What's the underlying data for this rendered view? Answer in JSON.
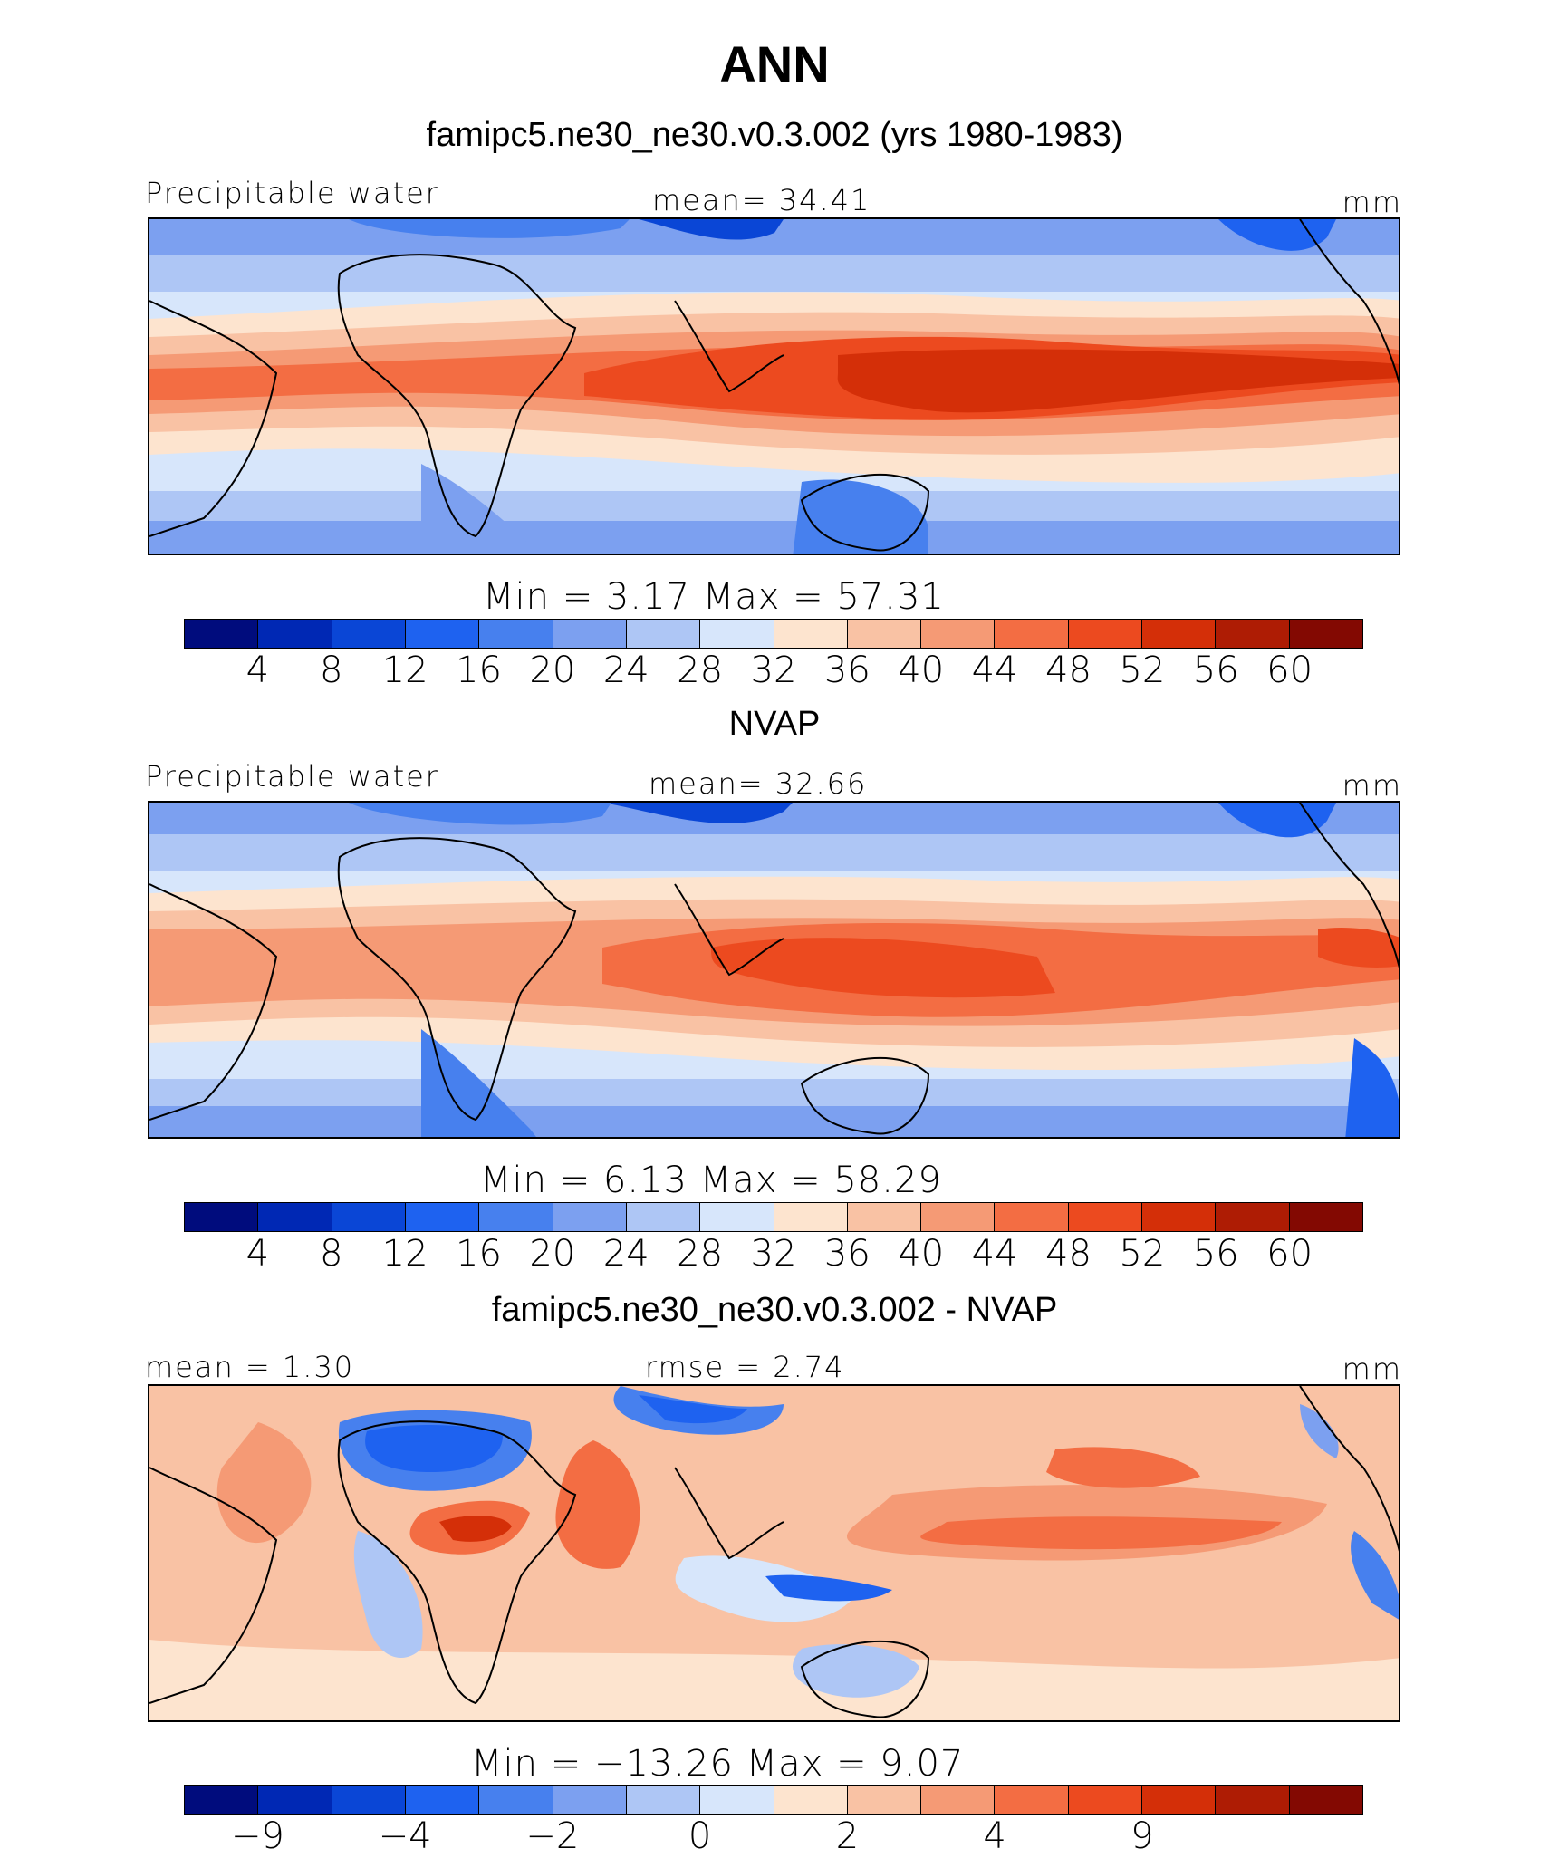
{
  "figure": {
    "title": "ANN",
    "colors": [
      "#000c7d",
      "#0028b4",
      "#0a46d6",
      "#1e62f0",
      "#4780ee",
      "#7ca0f0",
      "#aec6f5",
      "#d7e6fb",
      "#fde4cf",
      "#f9c2a4",
      "#f59a75",
      "#f36d43",
      "#ec4a1f",
      "#d42f08",
      "#ae1c04",
      "#830902"
    ]
  },
  "panels": [
    {
      "id": "model",
      "title": "famipc5.ne30_ne30.v0.3.002 (yrs 1980-1983)",
      "left_label": "Precipitable water",
      "center_label": "mean=   34.41",
      "right_label": "mm",
      "minmax": "Min  =     3.17  Max  =    57.31",
      "ticks": [
        "4",
        "8",
        "12",
        "16",
        "20",
        "24",
        "28",
        "32",
        "36",
        "40",
        "44",
        "48",
        "52",
        "56",
        "60"
      ]
    },
    {
      "id": "obs",
      "title": "NVAP",
      "left_label": "Precipitable water",
      "center_label": "mean=   32.66",
      "right_label": "mm",
      "minmax": "Min  =     6.13  Max  =    58.29",
      "ticks": [
        "4",
        "8",
        "12",
        "16",
        "20",
        "24",
        "28",
        "32",
        "36",
        "40",
        "44",
        "48",
        "52",
        "56",
        "60"
      ]
    },
    {
      "id": "diff",
      "title": "famipc5.ne30_ne30.v0.3.002 - NVAP",
      "left_label": "mean  =     1.30",
      "center_label": "rmse  =     2.74",
      "right_label": "mm",
      "minmax": "Min  =  −13.26  Max  =      9.07",
      "ticks": [
        "−9",
        "",
        "−4",
        "",
        "−2",
        "",
        "0",
        "",
        "2",
        "",
        "4",
        "",
        "9",
        "",
        ""
      ]
    }
  ],
  "chart_data": [
    {
      "type": "heatmap",
      "title": "famipc5.ne30_ne30.v0.3.002 (yrs 1980-1983)",
      "variable": "Precipitable water",
      "units": "mm",
      "mean": 34.41,
      "min": 3.17,
      "max": 57.31,
      "levels": [
        4,
        8,
        12,
        16,
        20,
        24,
        28,
        32,
        36,
        40,
        44,
        48,
        52,
        56,
        60
      ]
    },
    {
      "type": "heatmap",
      "title": "NVAP",
      "variable": "Precipitable water",
      "units": "mm",
      "mean": 32.66,
      "min": 6.13,
      "max": 58.29,
      "levels": [
        4,
        8,
        12,
        16,
        20,
        24,
        28,
        32,
        36,
        40,
        44,
        48,
        52,
        56,
        60
      ]
    },
    {
      "type": "heatmap",
      "title": "famipc5.ne30_ne30.v0.3.002 - NVAP",
      "units": "mm",
      "mean": 1.3,
      "rmse": 2.74,
      "min": -13.26,
      "max": 9.07,
      "levels": [
        -9,
        -4,
        -2,
        0,
        2,
        4,
        9
      ]
    }
  ]
}
